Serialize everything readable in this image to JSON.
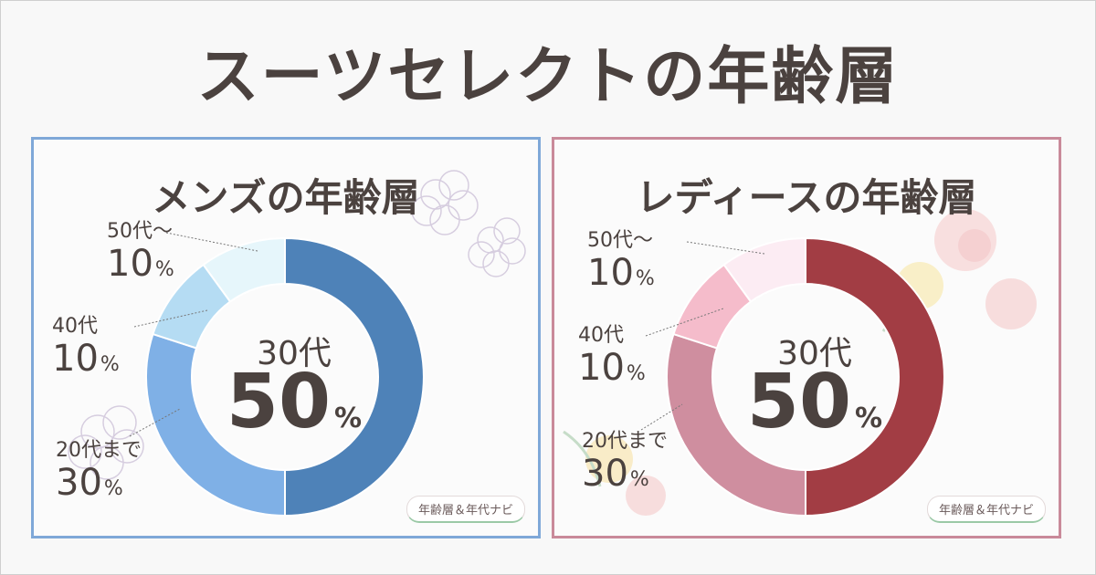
{
  "title": "スーツセレクトの年齢層",
  "center_unit": "%",
  "badge": "年齢層＆年代ナビ",
  "chart_data": [
    {
      "type": "pie",
      "title": "メンズの年齢層",
      "center": {
        "label": "30代",
        "value": 50
      },
      "slices": [
        {
          "label": "30代",
          "value": 50,
          "color": "#4e82b8"
        },
        {
          "label": "20代まで",
          "value": 30,
          "color": "#7fb0e6"
        },
        {
          "label": "40代",
          "value": 10,
          "color": "#b5dcf3"
        },
        {
          "label": "50代～",
          "value": 10,
          "color": "#e6f6fb"
        }
      ],
      "side_labels": [
        {
          "name": "50代～",
          "pct": "10"
        },
        {
          "name": "40代",
          "pct": "10"
        },
        {
          "name": "20代まで",
          "pct": "30"
        }
      ]
    },
    {
      "type": "pie",
      "title": "レディースの年齢層",
      "center": {
        "label": "30代",
        "value": 50
      },
      "slices": [
        {
          "label": "30代",
          "value": 50,
          "color": "#a23d44"
        },
        {
          "label": "20代まで",
          "value": 30,
          "color": "#cf8e9f"
        },
        {
          "label": "40代",
          "value": 10,
          "color": "#f5bccb"
        },
        {
          "label": "50代～",
          "value": 10,
          "color": "#fcecf3"
        }
      ],
      "side_labels": [
        {
          "name": "50代～",
          "pct": "10"
        },
        {
          "name": "40代",
          "pct": "10"
        },
        {
          "name": "20代まで",
          "pct": "30"
        }
      ]
    }
  ]
}
